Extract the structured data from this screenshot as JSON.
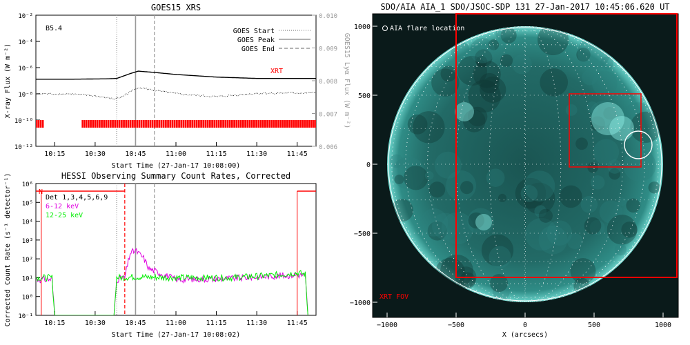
{
  "colors": {
    "red": "#ff0000",
    "magenta": "#e000e0",
    "green": "#00ee00",
    "gray": "#999999",
    "sun_disk": "#1f6e6c",
    "sun_dark": "#0a1a1a"
  },
  "goes": {
    "title": "GOES15 XRS",
    "class_label": "B5.4",
    "ylabel": "X-ray Flux (W m⁻²)",
    "ylabel_right": "GOES15 Lyα Flux (W m⁻²)",
    "xlabel": "Start Time (27-Jan-17 10:08:00)",
    "xrt_label": "XRT",
    "legend": [
      "GOES Start",
      "GOES Peak",
      "GOES End"
    ],
    "yticks_left": [
      "10⁻²",
      "10⁻⁴",
      "10⁻⁶",
      "10⁻⁸",
      "10⁻¹⁰",
      "10⁻¹²"
    ],
    "yticks_right": [
      "0.010",
      "0.009",
      "0.008",
      "0.007",
      "0.006"
    ],
    "xticks": [
      "10:15",
      "10:30",
      "10:45",
      "11:00",
      "11:15",
      "11:30",
      "11:45"
    ]
  },
  "hessi": {
    "title": "HESSI Observing Summary Count Rates, Corrected",
    "ylabel": "Corrected Count Rate (s⁻¹ detector⁻¹)",
    "xlabel": "Start Time (27-Jan-17 10:08:02)",
    "n_label": "N",
    "legend": [
      "Det 1,3,4,5,6,9",
      "6-12 keV",
      "12-25 keV"
    ],
    "yticks": [
      "10⁶",
      "10⁵",
      "10⁴",
      "10³",
      "10²",
      "10¹",
      "10⁰",
      "10⁻¹"
    ],
    "xticks": [
      "10:15",
      "10:30",
      "10:45",
      "11:00",
      "11:15",
      "11:30",
      "11:45"
    ]
  },
  "aia": {
    "title": "SDO/AIA AIA_1 SDO/JSOC-SDP 131 27-Jan-2017 10:45:06.620 UT",
    "flare_label": "AIA flare location",
    "xrt_fov_label": "XRT FOV",
    "xlabel": "X (arcsecs)",
    "xticks": [
      "−1000",
      "−500",
      "0",
      "500",
      "1000"
    ],
    "yticks": [
      "1000",
      "500",
      "0",
      "−500",
      "−1000"
    ]
  },
  "chart_data": [
    {
      "type": "line",
      "title": "GOES15 XRS",
      "xlabel": "Start Time (27-Jan-17 10:08:00)",
      "ylabel": "X-ray Flux (W m⁻²)",
      "xlim": [
        "10:08",
        "11:52"
      ],
      "ylim": [
        1e-12,
        0.01
      ],
      "yscale": "log",
      "series": [
        {
          "name": "",
          "x": [
            "10:08",
            "10:20",
            "10:35",
            "10:38",
            "10:43",
            "10:46",
            "10:52",
            "11:00",
            "11:15",
            "11:30",
            "11:52"
          ],
          "y": [
            1.3e-07,
            1.3e-07,
            1.4e-07,
            1.5e-07,
            3.5e-07,
            5.4e-07,
            4.3e-07,
            3e-07,
            1.9e-07,
            1.5e-07,
            1.5e-07
          ]
        },
        {
          "name": "",
          "x": [
            "10:08",
            "10:20",
            "10:30",
            "10:37",
            "10:40",
            "10:46",
            "10:52",
            "11:00",
            "11:15",
            "11:30",
            "11:52"
          ],
          "y": [
            1e-08,
            1e-08,
            7e-09,
            4e-09,
            6e-09,
            3.2e-08,
            1.8e-08,
            1e-08,
            6e-09,
            1.1e-08,
            1.2e-08
          ]
        }
      ],
      "vlines": [
        {
          "x": "10:38",
          "style": "dotted"
        },
        {
          "x": "10:45",
          "style": "solid"
        },
        {
          "x": "10:52",
          "style": "dashed"
        }
      ],
      "xrt_coverage": [
        [
          "10:08",
          "10:11"
        ],
        [
          "10:25",
          "11:52"
        ]
      ]
    },
    {
      "type": "line",
      "title": "HESSI Observing Summary Count Rates, Corrected",
      "xlabel": "Start Time (27-Jan-17 10:08:02)",
      "ylabel": "Corrected Count Rate (s⁻¹ detector⁻¹)",
      "xlim": [
        "10:08",
        "11:52"
      ],
      "ylim": [
        0.1,
        1000000.0
      ],
      "yscale": "log",
      "series": [
        {
          "name": "6-12 keV",
          "x": [
            "10:08",
            "10:14",
            "10:15",
            "10:37",
            "10:38",
            "10:41",
            "10:43",
            "10:45",
            "10:48",
            "10:50",
            "11:00",
            "11:20",
            "11:35",
            "11:45",
            "11:48",
            "11:49"
          ],
          "y": [
            8,
            8,
            0.1,
            0.1,
            8,
            10,
            200,
            280,
            110,
            30,
            8,
            9,
            12,
            14,
            13,
            0.1
          ]
        },
        {
          "name": "12-25 keV",
          "x": [
            "10:08",
            "10:14",
            "10:15",
            "10:37",
            "10:38",
            "10:45",
            "11:00",
            "11:20",
            "11:35",
            "11:45",
            "11:48",
            "11:49"
          ],
          "y": [
            10,
            10,
            0.1,
            0.1,
            10,
            11,
            10,
            10,
            13,
            18,
            15,
            0.1
          ]
        }
      ],
      "vlines": [
        {
          "x": "10:38",
          "style": "dotted"
        },
        {
          "x": "10:45",
          "style": "solid"
        },
        {
          "x": "10:52",
          "style": "dashed"
        },
        {
          "x": "10:41",
          "style": "red-dashed"
        }
      ],
      "night_bars": [
        [
          "10:08",
          "10:41"
        ],
        [
          "11:45",
          "11:52"
        ]
      ]
    },
    {
      "type": "heatmap",
      "title": "SDO/AIA AIA_1 SDO/JSOC-SDP 131 27-Jan-2017 10:45:06.620 UT",
      "xlabel": "X (arcsecs)",
      "xlim": [
        -1100,
        1100
      ],
      "ylim": [
        -1100,
        1100
      ],
      "xrt_fov": {
        "x": [
          -500,
          1100
        ],
        "y": [
          -820,
          1100
        ]
      },
      "flare_box": {
        "x": [
          320,
          840
        ],
        "y": [
          -20,
          510
        ]
      },
      "flare_circle": {
        "x": 820,
        "y": 140,
        "r": 100
      }
    }
  ]
}
